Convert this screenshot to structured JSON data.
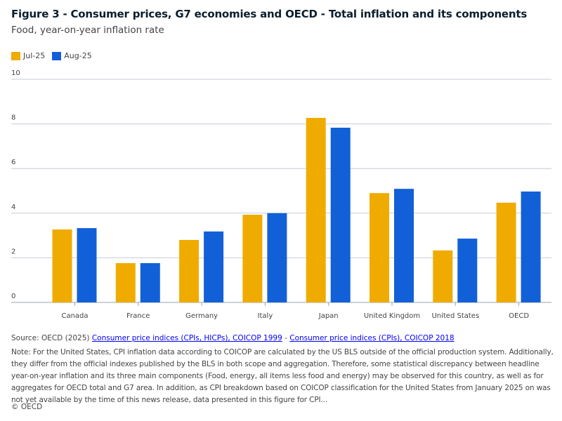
{
  "chart_data": {
    "type": "bar",
    "title": "Figure 3 - Consumer prices, G7 economies and OECD - Total inflation and its components",
    "subtitle": "Food, year-on-year inflation rate",
    "categories": [
      "Canada",
      "France",
      "Germany",
      "Italy",
      "Japan",
      "United Kingdom",
      "United States",
      "OECD"
    ],
    "series": [
      {
        "name": "Jul-25",
        "color": "#f0ab00",
        "values": [
          3.27,
          1.76,
          2.8,
          3.93,
          8.27,
          4.9,
          2.33,
          4.47
        ]
      },
      {
        "name": "Aug-25",
        "color": "#1260d8",
        "values": [
          3.33,
          1.76,
          3.18,
          4.0,
          7.83,
          5.09,
          2.86,
          4.97
        ]
      }
    ],
    "yticks": [
      0,
      2,
      4,
      6,
      8,
      10
    ],
    "ylim": [
      0,
      10
    ],
    "grid": true,
    "legend_placement": "top-left"
  },
  "footer": {
    "source_prefix": "Source: OECD (2025) ",
    "link1": "Consumer price indices (CPIs, HICPs), COICOP 1999",
    "sep": " - ",
    "link2": "Consumer price indices (CPIs), COICOP 2018",
    "note": "Note: For the United States, CPI inflation data according to COICOP are calculated by the US BLS outside of the official production system. Additionally, they differ from the official indexes published by the BLS in both scope and aggregation. Therefore, some statistical discrepancy between headline year-on-year inflation and its three main components (Food, energy, all items less food and energy) may be observed for this country, as well as for aggregates for OECD total and G7 area. In addition, as CPI breakdown based on COICOP classification for the United States from January 2025 on was not yet available by the time of this news release, data presented in this figure for CPI...",
    "copyright": "© OECD"
  }
}
